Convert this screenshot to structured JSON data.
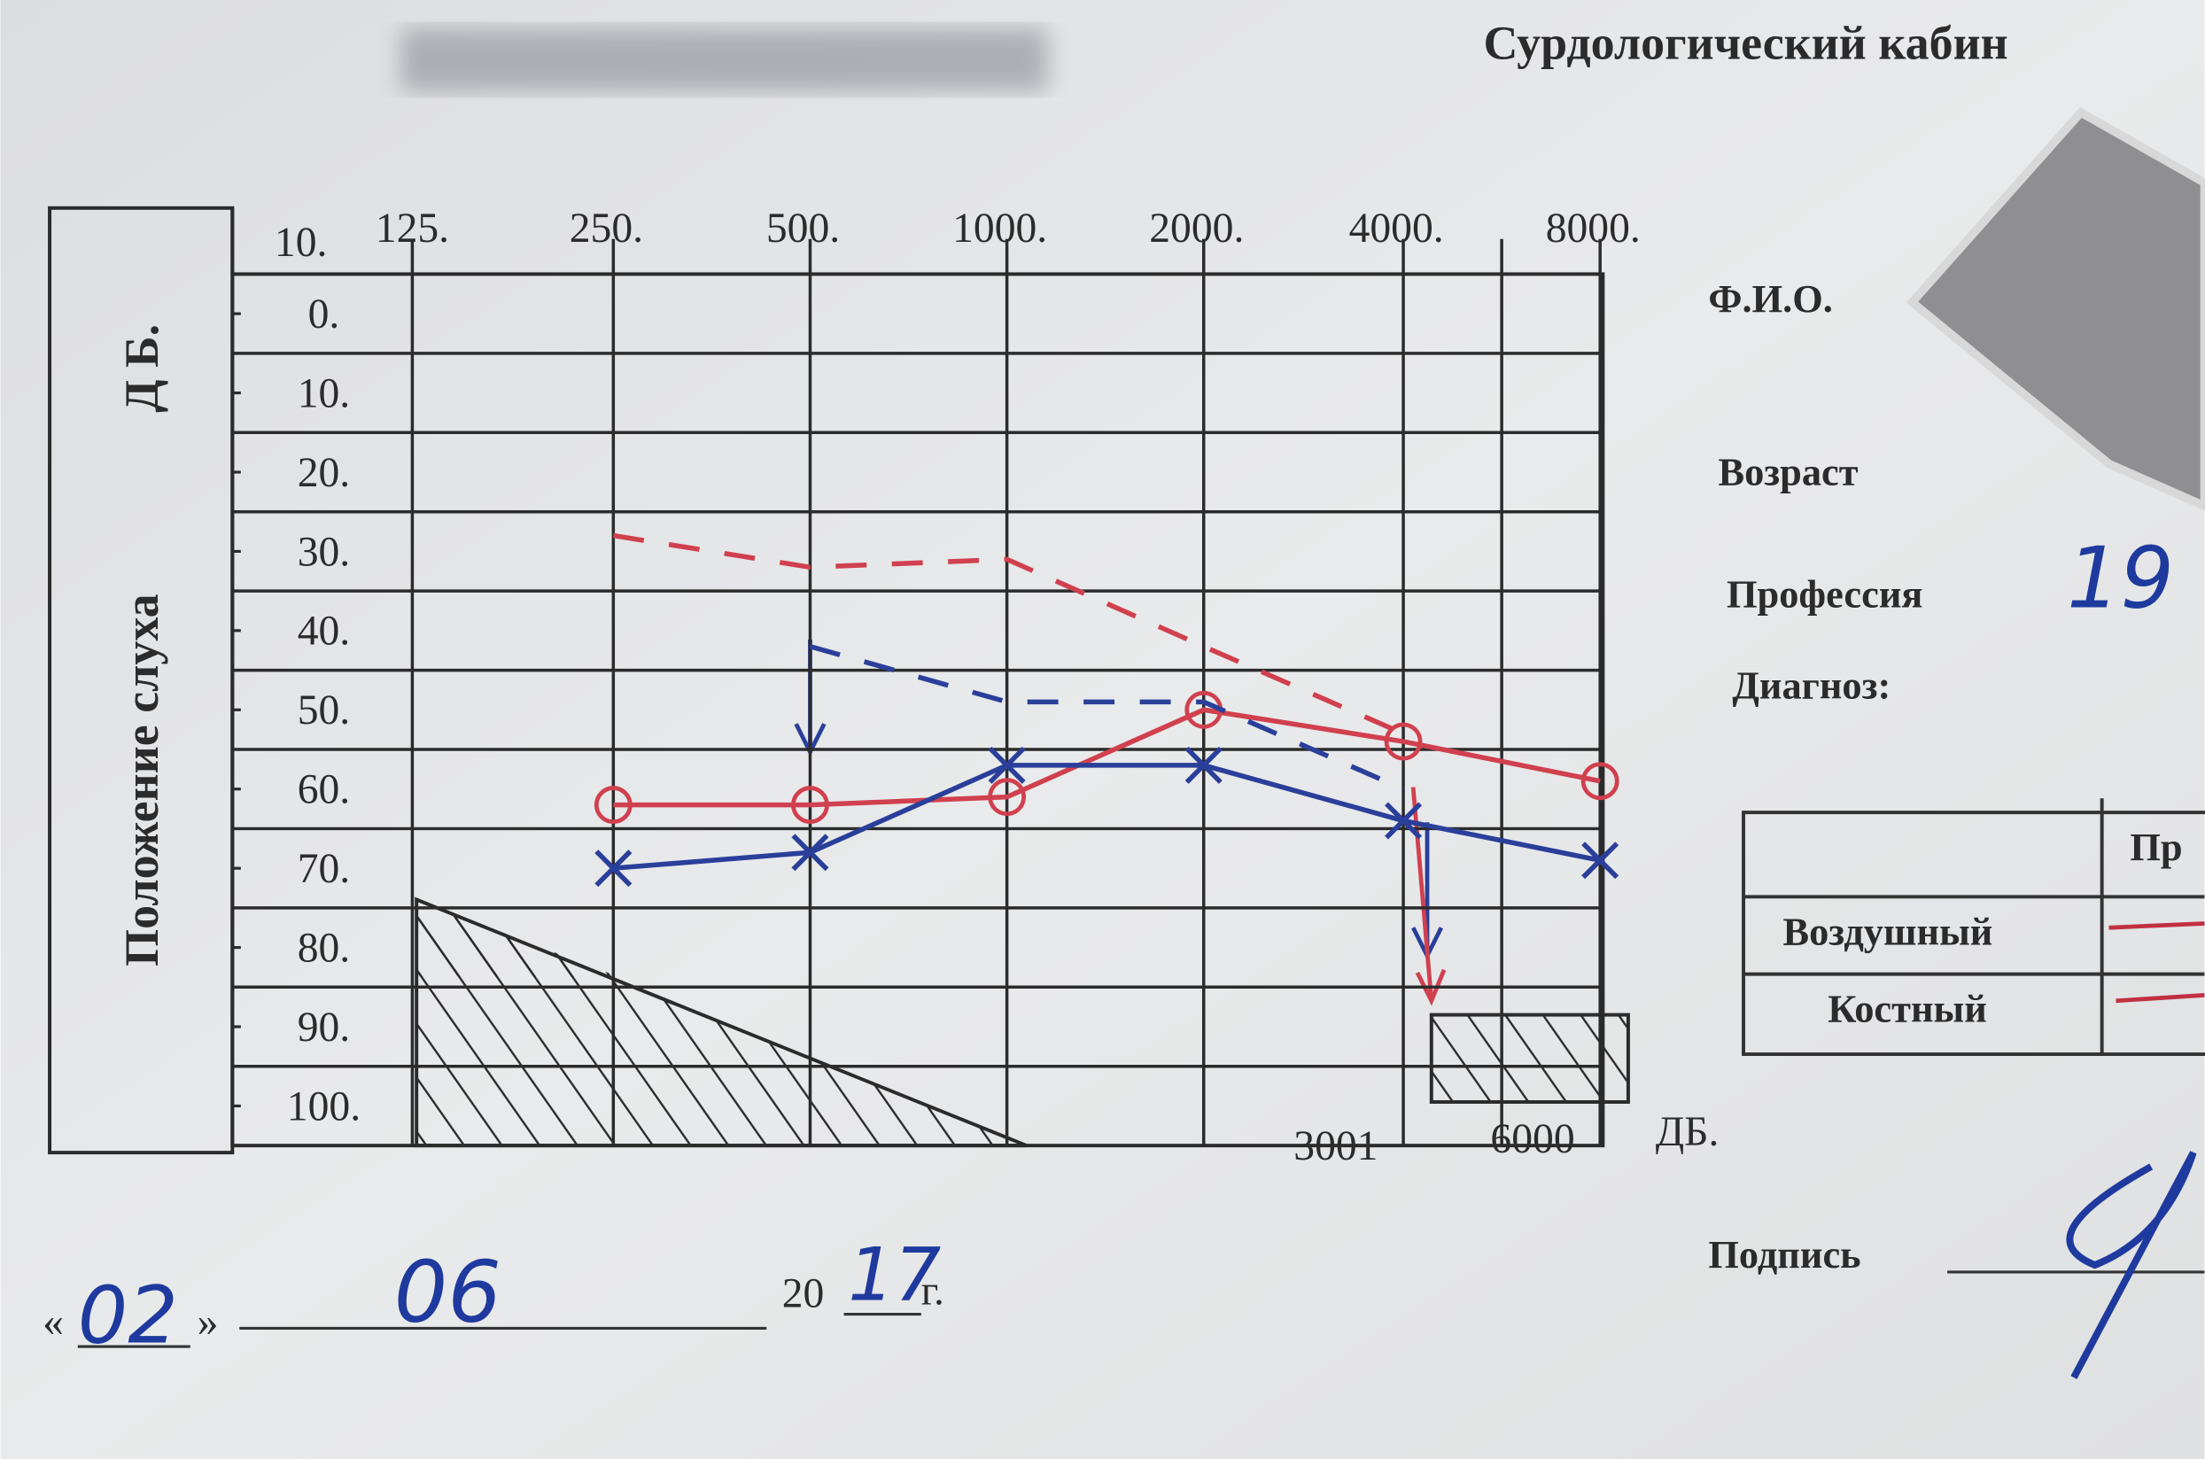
{
  "document": {
    "title": "Сурдологический кабин",
    "fields": {
      "name": "Ф.И.О.",
      "age": "Возраст",
      "profession": "Профессия",
      "profession_value": "19",
      "diagnosis": "Диагноз:",
      "signature": "Подпись"
    },
    "legend_table": {
      "header": "Пр",
      "rows": [
        "Воздушный",
        "Костный"
      ]
    },
    "date": {
      "open": "«",
      "day": "02",
      "close": "»",
      "month": "06",
      "century": "20",
      "year": "17",
      "suffix": "г."
    }
  },
  "chart_data": {
    "type": "line",
    "y_label": "Положение слуха",
    "y_unit": "Д Б.",
    "corner_label": "10.",
    "categories": [
      {
        "value": 125,
        "label": "125."
      },
      {
        "value": 250,
        "label": "250."
      },
      {
        "value": 500,
        "label": "500."
      },
      {
        "value": 1000,
        "label": "1000."
      },
      {
        "value": 2000,
        "label": "2000."
      },
      {
        "value": 4000,
        "label": "4000."
      },
      {
        "value": 8000,
        "label": "8000."
      }
    ],
    "bottom_labels": [
      "3001",
      "6000",
      "ДБ."
    ],
    "ylim": [
      -5,
      105
    ],
    "y_inverted": true,
    "yticks": [
      {
        "value": 0,
        "label": "0."
      },
      {
        "value": 10,
        "label": "10."
      },
      {
        "value": 20,
        "label": "20."
      },
      {
        "value": 30,
        "label": "30."
      },
      {
        "value": 40,
        "label": "40."
      },
      {
        "value": 50,
        "label": "50."
      },
      {
        "value": 60,
        "label": "60."
      },
      {
        "value": 70,
        "label": "70."
      },
      {
        "value": 80,
        "label": "80."
      },
      {
        "value": 90,
        "label": "90."
      },
      {
        "value": 100,
        "label": "100."
      }
    ],
    "series": [
      {
        "color": "#d0404e",
        "marker": "o",
        "line_style": "solid",
        "values": [
          null,
          62,
          62,
          61,
          50,
          54,
          59
        ]
      },
      {
        "color": "#2a3f9a",
        "marker": "x",
        "line_style": "solid",
        "values": [
          null,
          70,
          68,
          57,
          57,
          64,
          69
        ]
      },
      {
        "color": "#d0404e",
        "marker": "none",
        "line_style": "dashed",
        "values": [
          null,
          28,
          32,
          31,
          42,
          53,
          null
        ]
      },
      {
        "color": "#2a3f9a",
        "marker": "none",
        "line_style": "dashed",
        "values": [
          null,
          null,
          42,
          49,
          49,
          60,
          null
        ]
      }
    ]
  }
}
